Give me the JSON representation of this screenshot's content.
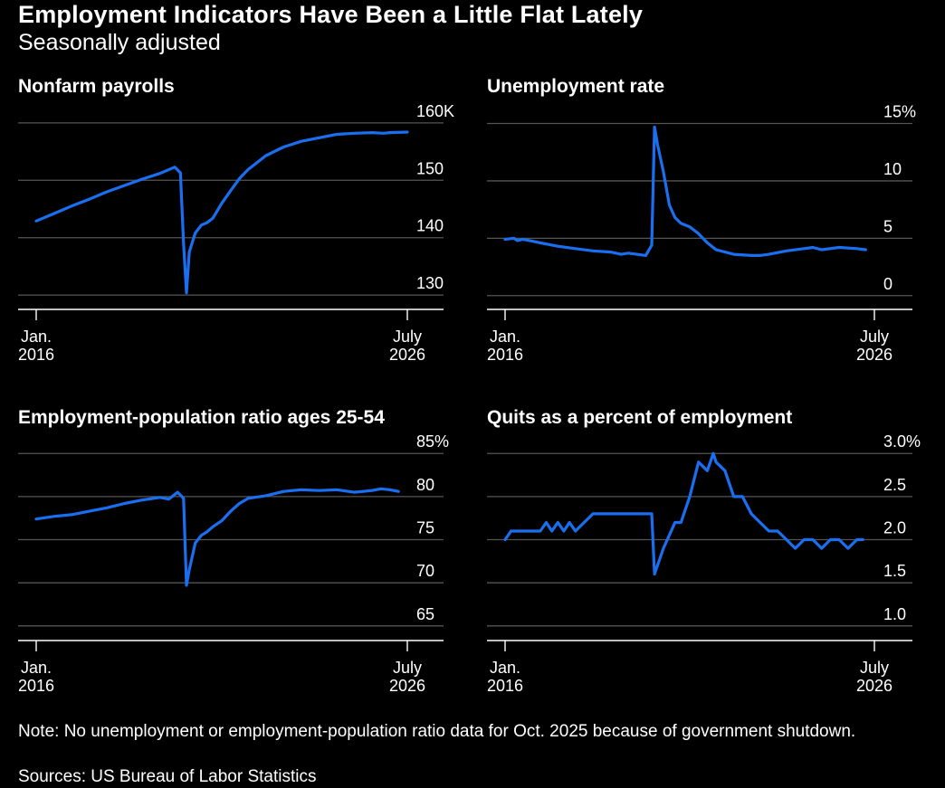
{
  "header": {
    "title": "Employment Indicators Have Been a Little Flat Lately",
    "subtitle": "Seasonally adjusted"
  },
  "footer": {
    "note": "Note: No unemployment or employment-population ratio data for Oct. 2025 because of government shutdown.",
    "source": "Sources: US Bureau of Labor Statistics"
  },
  "colors": {
    "background": "#000000",
    "line": "#1a6ff0",
    "text": "#ffffff",
    "gridline": "#555555"
  },
  "chart_data": [
    {
      "type": "line",
      "title": "Nonfarm payrolls",
      "x_tick_labels": [
        [
          "Jan.",
          "2016"
        ],
        [
          "July",
          "2026"
        ]
      ],
      "x_range": [
        2016.0,
        2026.5
      ],
      "y_ticks": [
        130,
        140,
        150,
        160
      ],
      "y_tick_labels": [
        "130",
        "140",
        "150",
        "160K"
      ],
      "ylim": [
        127.5,
        162.5
      ],
      "grid": true,
      "x": [
        2016.0,
        2016.5,
        2017.0,
        2017.5,
        2018.0,
        2018.5,
        2019.0,
        2019.5,
        2019.92,
        2020.08,
        2020.17,
        2020.25,
        2020.33,
        2020.5,
        2020.67,
        2020.83,
        2021.0,
        2021.25,
        2021.5,
        2021.75,
        2022.0,
        2022.5,
        2023.0,
        2023.5,
        2024.0,
        2024.5,
        2025.0,
        2025.5,
        2025.83,
        2026.0,
        2026.5
      ],
      "y": [
        142.9,
        144.2,
        145.5,
        146.7,
        148.0,
        149.1,
        150.2,
        151.2,
        152.3,
        151.3,
        139.0,
        130.4,
        137.5,
        140.8,
        142.2,
        142.6,
        143.4,
        146.0,
        148.2,
        150.3,
        151.9,
        154.3,
        155.8,
        156.8,
        157.4,
        158.0,
        158.2,
        158.3,
        158.2,
        158.3,
        158.4
      ]
    },
    {
      "type": "line",
      "title": "Unemployment rate",
      "x_tick_labels": [
        [
          "Jan.",
          "2016"
        ],
        [
          "July",
          "2026"
        ]
      ],
      "x_range": [
        2016.0,
        2026.5
      ],
      "y_ticks": [
        0,
        5,
        10,
        15
      ],
      "y_tick_labels": [
        "0",
        "5",
        "10",
        "15%"
      ],
      "ylim": [
        -1.2,
        16.3
      ],
      "grid": true,
      "x": [
        2016.0,
        2016.25,
        2016.35,
        2016.5,
        2016.7,
        2017.0,
        2017.5,
        2018.0,
        2018.5,
        2019.0,
        2019.3,
        2019.5,
        2019.75,
        2020.0,
        2020.17,
        2020.25,
        2020.33,
        2020.5,
        2020.67,
        2020.83,
        2021.0,
        2021.25,
        2021.5,
        2021.75,
        2022.0,
        2022.5,
        2023.0,
        2023.25,
        2023.5,
        2024.0,
        2024.5,
        2024.75,
        2025.0,
        2025.5,
        2026.0,
        2026.25
      ],
      "y": [
        4.9,
        5.0,
        4.8,
        4.9,
        4.8,
        4.6,
        4.3,
        4.1,
        3.9,
        3.8,
        3.6,
        3.7,
        3.6,
        3.5,
        4.4,
        14.7,
        13.2,
        10.8,
        7.9,
        6.8,
        6.3,
        6.0,
        5.4,
        4.6,
        4.0,
        3.6,
        3.5,
        3.5,
        3.6,
        3.9,
        4.1,
        4.2,
        4.0,
        4.2,
        4.1,
        4.0
      ]
    },
    {
      "type": "line",
      "title": "Employment-population ratio ages 25-54",
      "x_tick_labels": [
        [
          "Jan.",
          "2016"
        ],
        [
          "July",
          "2026"
        ]
      ],
      "x_range": [
        2016.0,
        2026.5
      ],
      "y_ticks": [
        65,
        70,
        75,
        80,
        85
      ],
      "y_tick_labels": [
        "65",
        "70",
        "75",
        "80",
        "85%"
      ],
      "ylim": [
        63.3,
        86.6
      ],
      "grid": true,
      "x": [
        2016.0,
        2016.5,
        2017.0,
        2017.5,
        2018.0,
        2018.5,
        2019.0,
        2019.5,
        2019.75,
        2020.0,
        2020.17,
        2020.25,
        2020.33,
        2020.5,
        2020.67,
        2020.83,
        2021.0,
        2021.25,
        2021.5,
        2021.75,
        2022.0,
        2022.5,
        2023.0,
        2023.5,
        2024.0,
        2024.5,
        2025.0,
        2025.5,
        2025.75,
        2026.0,
        2026.25
      ],
      "y": [
        77.4,
        77.7,
        77.9,
        78.3,
        78.7,
        79.2,
        79.6,
        79.9,
        79.7,
        80.5,
        79.8,
        69.7,
        71.5,
        74.6,
        75.5,
        75.9,
        76.5,
        77.2,
        78.3,
        79.2,
        79.8,
        80.1,
        80.6,
        80.8,
        80.7,
        80.8,
        80.5,
        80.7,
        80.9,
        80.8,
        80.6
      ]
    },
    {
      "type": "line",
      "title": "Quits as a percent of employment",
      "x_tick_labels": [
        [
          "Jan.",
          "2016"
        ],
        [
          "July",
          "2026"
        ]
      ],
      "x_range": [
        2016.0,
        2026.5
      ],
      "y_ticks": [
        1.0,
        1.5,
        2.0,
        2.5,
        3.0
      ],
      "y_tick_labels": [
        "1.0",
        "1.5",
        "2.0",
        "2.5",
        "3.0%"
      ],
      "ylim": [
        0.83,
        3.16
      ],
      "grid": true,
      "x": [
        2016.0,
        2016.17,
        2016.33,
        2016.67,
        2017.0,
        2017.17,
        2017.33,
        2017.5,
        2017.67,
        2017.83,
        2018.0,
        2018.5,
        2018.83,
        2019.0,
        2019.5,
        2019.83,
        2020.17,
        2020.25,
        2020.5,
        2020.83,
        2021.0,
        2021.25,
        2021.5,
        2021.75,
        2021.92,
        2022.0,
        2022.25,
        2022.5,
        2022.75,
        2023.0,
        2023.25,
        2023.5,
        2023.75,
        2024.0,
        2024.25,
        2024.5,
        2024.75,
        2025.0,
        2025.25,
        2025.5,
        2025.75,
        2026.0,
        2026.17
      ],
      "y": [
        2.0,
        2.1,
        2.1,
        2.1,
        2.1,
        2.2,
        2.1,
        2.2,
        2.1,
        2.2,
        2.1,
        2.3,
        2.3,
        2.3,
        2.3,
        2.3,
        2.3,
        1.6,
        1.9,
        2.2,
        2.2,
        2.5,
        2.9,
        2.8,
        3.0,
        2.9,
        2.8,
        2.5,
        2.5,
        2.3,
        2.2,
        2.1,
        2.1,
        2.0,
        1.9,
        2.0,
        2.0,
        1.9,
        2.0,
        2.0,
        1.9,
        2.0,
        2.0
      ]
    }
  ]
}
